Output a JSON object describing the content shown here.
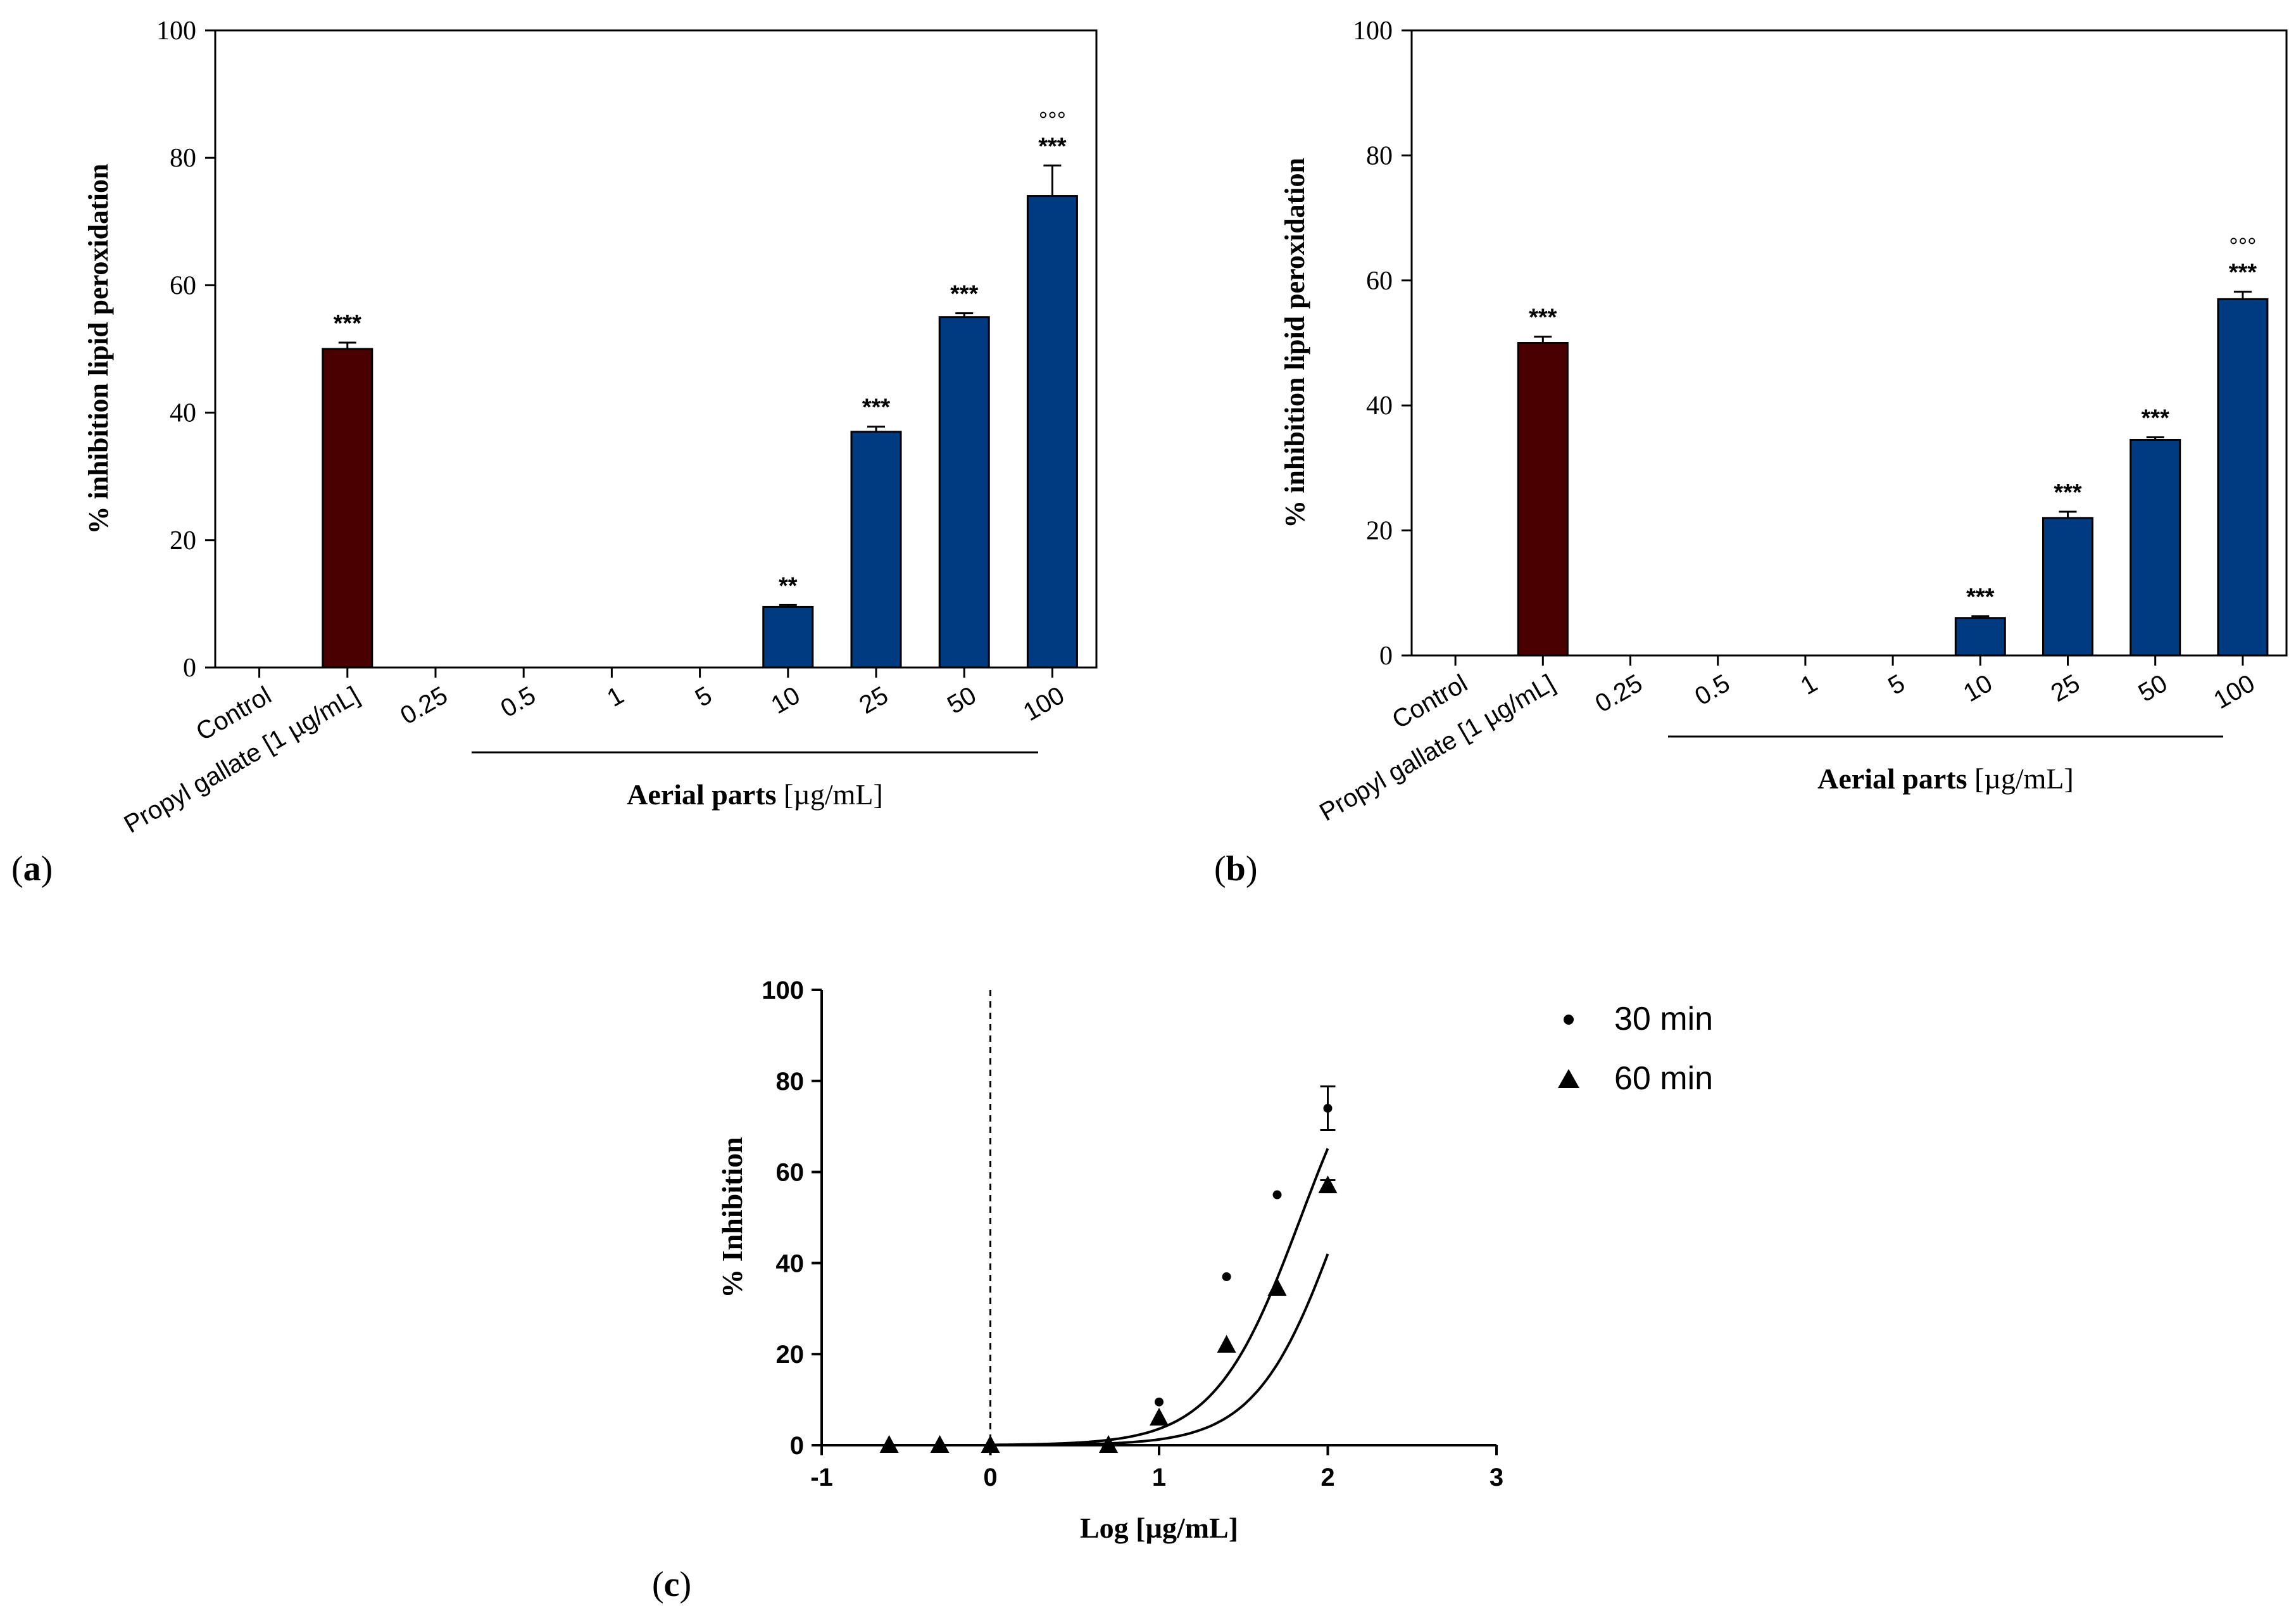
{
  "colors": {
    "propyl_gallate": "#4a0000",
    "aerial_parts": "#003a80",
    "axis": "#000000"
  },
  "chart_data": [
    {
      "panel_label": "(a)",
      "type": "bar",
      "ylabel": "% inhibition lipid peroxidation",
      "group_label_bold": "Aerial parts",
      "group_label_unit": " [µg/mL]",
      "ylim": [
        0,
        100
      ],
      "yticks": [
        "0",
        "20",
        "40",
        "60",
        "80",
        "100"
      ],
      "categories": [
        "Control",
        "Propyl gallate [1 µg/mL]",
        "0.25",
        "0.5",
        "1",
        "5",
        "10",
        "25",
        "50",
        "100"
      ],
      "values": [
        0,
        50,
        0,
        0,
        0,
        0,
        9.5,
        37,
        55,
        74
      ],
      "errors": [
        0,
        1,
        0,
        0,
        0,
        0,
        0.3,
        0.8,
        0.6,
        4.8
      ],
      "series_kind": [
        "none",
        "reference",
        "sample",
        "sample",
        "sample",
        "sample",
        "sample",
        "sample",
        "sample",
        "sample"
      ],
      "stars": [
        "",
        "***",
        "",
        "",
        "",
        "",
        "**",
        "***",
        "***",
        "***"
      ],
      "degrees": [
        "",
        "",
        "",
        "",
        "",
        "",
        "",
        "",
        "",
        "°°°"
      ]
    },
    {
      "panel_label": "(b)",
      "type": "bar",
      "ylabel": "% inhibition lipid peroxidation",
      "group_label_bold": "Aerial parts",
      "group_label_unit": " [µg/mL]",
      "ylim": [
        0,
        100
      ],
      "yticks": [
        "0",
        "20",
        "40",
        "60",
        "80",
        "100"
      ],
      "categories": [
        "Control",
        "Propyl gallate [1 µg/mL]",
        "0.25",
        "0.5",
        "1",
        "5",
        "10",
        "25",
        "50",
        "100"
      ],
      "values": [
        0,
        50,
        0,
        0,
        0,
        0,
        6,
        22,
        34.5,
        57
      ],
      "errors": [
        0,
        1,
        0,
        0,
        0,
        0,
        0.3,
        1,
        0.4,
        1.2
      ],
      "series_kind": [
        "none",
        "reference",
        "sample",
        "sample",
        "sample",
        "sample",
        "sample",
        "sample",
        "sample",
        "sample"
      ],
      "stars": [
        "",
        "***",
        "",
        "",
        "",
        "",
        "***",
        "***",
        "***",
        "***"
      ],
      "degrees": [
        "",
        "",
        "",
        "",
        "",
        "",
        "",
        "",
        "",
        "°°°"
      ]
    },
    {
      "panel_label": "(c)",
      "type": "scatter",
      "xlabel": "Log [µg/mL]",
      "ylabel": "% Inhibition",
      "xlim": [
        -1,
        3
      ],
      "ylim": [
        0,
        100
      ],
      "xticks": [
        "-1",
        "0",
        "1",
        "2",
        "3"
      ],
      "yticks": [
        "0",
        "20",
        "40",
        "60",
        "80",
        "100"
      ],
      "vline_x": 0,
      "series": [
        {
          "name": "30 min",
          "marker": "circle",
          "x": [
            -0.6,
            -0.3,
            0,
            0.7,
            1,
            1.4,
            1.7,
            2
          ],
          "y": [
            0,
            0,
            0,
            0,
            9.5,
            37,
            55,
            74
          ],
          "err": [
            0,
            0,
            0,
            0,
            0,
            0,
            0,
            4.8
          ],
          "fit": {
            "top": 100,
            "logec50": 1.84,
            "hill": 1.7
          }
        },
        {
          "name": "60 min",
          "marker": "triangle",
          "x": [
            -0.6,
            -0.3,
            0,
            0.7,
            1,
            1.4,
            1.7,
            2
          ],
          "y": [
            0,
            0,
            0,
            0,
            6,
            22,
            34.5,
            57
          ],
          "err": [
            0,
            0,
            0,
            0,
            0,
            0,
            0,
            1.2
          ],
          "fit": {
            "top": 100,
            "logec50": 2.08,
            "hill": 1.75
          }
        }
      ]
    }
  ]
}
